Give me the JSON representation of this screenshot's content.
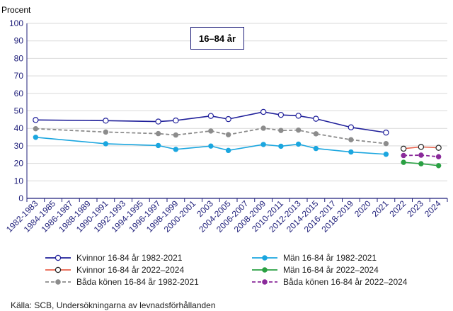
{
  "unit_label": "Procent",
  "panel_label": "16–84 år",
  "source": "Källa: SCB, Undersökningarna  av levnadsförhållanden",
  "colors": {
    "women_1982": "#20209a",
    "men_1982": "#1ba6df",
    "both_1982": "#8c8c8c",
    "women_2022": "#e8604a",
    "men_2022": "#2aa043",
    "both_2022": "#8a2a9a",
    "axis": "#1f1f7a",
    "grid": "#d9d9d9"
  },
  "chart_data": {
    "type": "line",
    "title": "16–84 år",
    "ylabel": "Procent",
    "xlabel": "",
    "ylim": [
      0,
      100
    ],
    "yticks": [
      0,
      10,
      20,
      30,
      40,
      50,
      60,
      70,
      80,
      90,
      100
    ],
    "grid": true,
    "legend_position": "bottom",
    "categories": [
      "1982-1983",
      "1984-1985",
      "1986-1987",
      "1988-1989",
      "1990-1991",
      "1992-1993",
      "1994-1995",
      "1996-1997",
      "1998-1999",
      "2000-2001",
      "2003",
      "2004-2005",
      "2006-2007",
      "2008-2009",
      "2010-2011",
      "2012-2013",
      "2014-2015",
      "2016-2017",
      "2018-2019",
      "2020",
      "2021",
      "2022",
      "2023",
      "2024"
    ],
    "series": [
      {
        "name": "Kvinnor 16-84 år 1982-2021",
        "color_key": "women_1982",
        "style": "solid",
        "marker": "hollow",
        "points": [
          [
            0,
            44.8
          ],
          [
            4,
            44.4
          ],
          [
            7,
            43.9
          ],
          [
            8,
            44.5
          ],
          [
            10,
            47.1
          ],
          [
            11,
            45.3
          ],
          [
            13,
            49.4
          ],
          [
            14,
            47.7
          ],
          [
            15,
            47.2
          ],
          [
            16,
            45.5
          ],
          [
            18,
            40.6
          ],
          [
            20,
            37.6
          ]
        ]
      },
      {
        "name": "Män 16-84 år 1982-2021",
        "color_key": "men_1982",
        "style": "solid",
        "marker": "filled",
        "points": [
          [
            0,
            34.9
          ],
          [
            4,
            31.2
          ],
          [
            7,
            30.2
          ],
          [
            8,
            28.0
          ],
          [
            10,
            29.9
          ],
          [
            11,
            27.4
          ],
          [
            13,
            30.8
          ],
          [
            14,
            29.8
          ],
          [
            15,
            31.0
          ],
          [
            16,
            28.5
          ],
          [
            18,
            26.5
          ],
          [
            20,
            25.2
          ]
        ]
      },
      {
        "name": "Båda könen 16-84 år 1982-2021",
        "color_key": "both_1982",
        "style": "dashed",
        "marker": "filled",
        "points": [
          [
            0,
            39.8
          ],
          [
            4,
            37.9
          ],
          [
            7,
            37.0
          ],
          [
            8,
            36.2
          ],
          [
            10,
            38.5
          ],
          [
            11,
            36.4
          ],
          [
            13,
            40.1
          ],
          [
            14,
            38.8
          ],
          [
            15,
            39.0
          ],
          [
            16,
            36.9
          ],
          [
            18,
            33.5
          ],
          [
            20,
            31.3
          ]
        ]
      },
      {
        "name": "Kvinnor  16-84 år 2022–2024",
        "color_key": "women_2022",
        "style": "solid",
        "marker": "hollow",
        "points": [
          [
            21,
            28.4
          ],
          [
            22,
            29.4
          ],
          [
            23,
            28.9
          ]
        ]
      },
      {
        "name": "Män 16-84 år 2022–2024",
        "color_key": "men_2022",
        "style": "solid",
        "marker": "filled",
        "points": [
          [
            21,
            20.6
          ],
          [
            22,
            19.8
          ],
          [
            23,
            18.7
          ]
        ]
      },
      {
        "name": "Båda könen  16-84 år 2022–2024",
        "color_key": "both_2022",
        "style": "dashed",
        "marker": "filled",
        "points": [
          [
            21,
            24.5
          ],
          [
            22,
            24.7
          ],
          [
            23,
            23.8
          ]
        ]
      }
    ]
  }
}
